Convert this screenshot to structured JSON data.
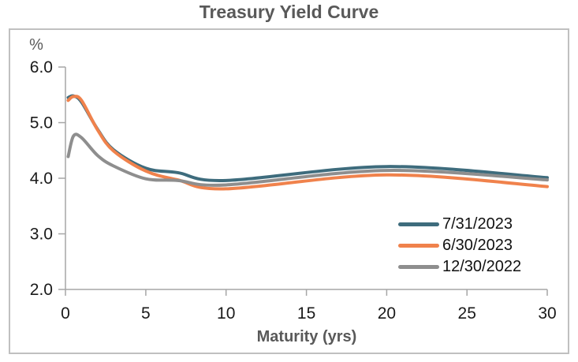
{
  "page": {
    "title": "Treasury Yield Curve"
  },
  "chart_data": {
    "type": "line",
    "title": "Treasury Yield Curve",
    "y_axis_unit_label": "%",
    "xlabel": "Maturity (yrs)",
    "ylabel": "",
    "xlim": [
      0,
      30
    ],
    "ylim": [
      2.0,
      6.0
    ],
    "grid": false,
    "legend_position": "inside-right-center",
    "x_tick_labels": [
      "0",
      "5",
      "10",
      "15",
      "20",
      "25",
      "30"
    ],
    "y_tick_labels": [
      "6.0",
      "5.0",
      "4.0",
      "3.0",
      "2.0"
    ],
    "x_ticks": [
      0,
      5,
      10,
      15,
      20,
      25,
      30
    ],
    "y_ticks": [
      6.0,
      5.0,
      4.0,
      3.0,
      2.0
    ],
    "series": [
      {
        "name": "7/31/2023",
        "color": "#3E6C7D",
        "points": [
          [
            0.17,
            5.45
          ],
          [
            0.5,
            5.48
          ],
          [
            1,
            5.37
          ],
          [
            2,
            4.88
          ],
          [
            3,
            4.51
          ],
          [
            5,
            4.18
          ],
          [
            7,
            4.1
          ],
          [
            10,
            3.96
          ],
          [
            20,
            4.21
          ],
          [
            30,
            4.01
          ]
        ]
      },
      {
        "name": "6/30/2023",
        "color": "#F0824C",
        "points": [
          [
            0.17,
            5.4
          ],
          [
            0.5,
            5.47
          ],
          [
            1,
            5.4
          ],
          [
            2,
            4.87
          ],
          [
            3,
            4.49
          ],
          [
            5,
            4.13
          ],
          [
            7,
            3.97
          ],
          [
            10,
            3.81
          ],
          [
            20,
            4.06
          ],
          [
            30,
            3.85
          ]
        ]
      },
      {
        "name": "12/30/2022",
        "color": "#8E8E8E",
        "points": [
          [
            0.17,
            4.39
          ],
          [
            0.5,
            4.76
          ],
          [
            1,
            4.73
          ],
          [
            2,
            4.41
          ],
          [
            3,
            4.22
          ],
          [
            5,
            3.99
          ],
          [
            7,
            3.96
          ],
          [
            10,
            3.88
          ],
          [
            20,
            4.14
          ],
          [
            30,
            3.97
          ]
        ]
      }
    ]
  }
}
